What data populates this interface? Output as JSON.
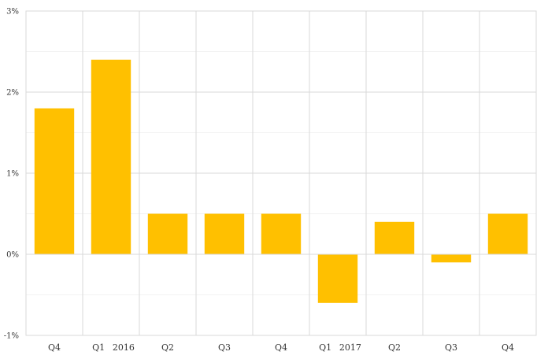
{
  "chart_data": {
    "type": "bar",
    "title": "",
    "xlabel": "",
    "ylabel": "",
    "categories": [
      "Q4",
      "Q1",
      "Q2",
      "Q3",
      "Q4",
      "Q1",
      "Q2",
      "Q3",
      "Q4"
    ],
    "group_labels": [
      {
        "label": "2016",
        "category_index": 1
      },
      {
        "label": "2017",
        "category_index": 5
      }
    ],
    "values": [
      1.8,
      2.4,
      0.5,
      0.5,
      0.5,
      -0.6,
      0.4,
      -0.1,
      0.5
    ],
    "ylim": [
      -1,
      3
    ],
    "y_ticks": [
      -1,
      0,
      1,
      2,
      3
    ],
    "y_tick_labels": [
      "-1%",
      "0%",
      "1%",
      "2%",
      "3%"
    ],
    "y_minor_grid": [
      -0.5,
      0.5,
      1.5,
      2.5
    ],
    "grid": true,
    "bar_color": "#FFC000",
    "grid_color": "#D9D9D9",
    "minor_grid_color": "#F2F2F2"
  }
}
